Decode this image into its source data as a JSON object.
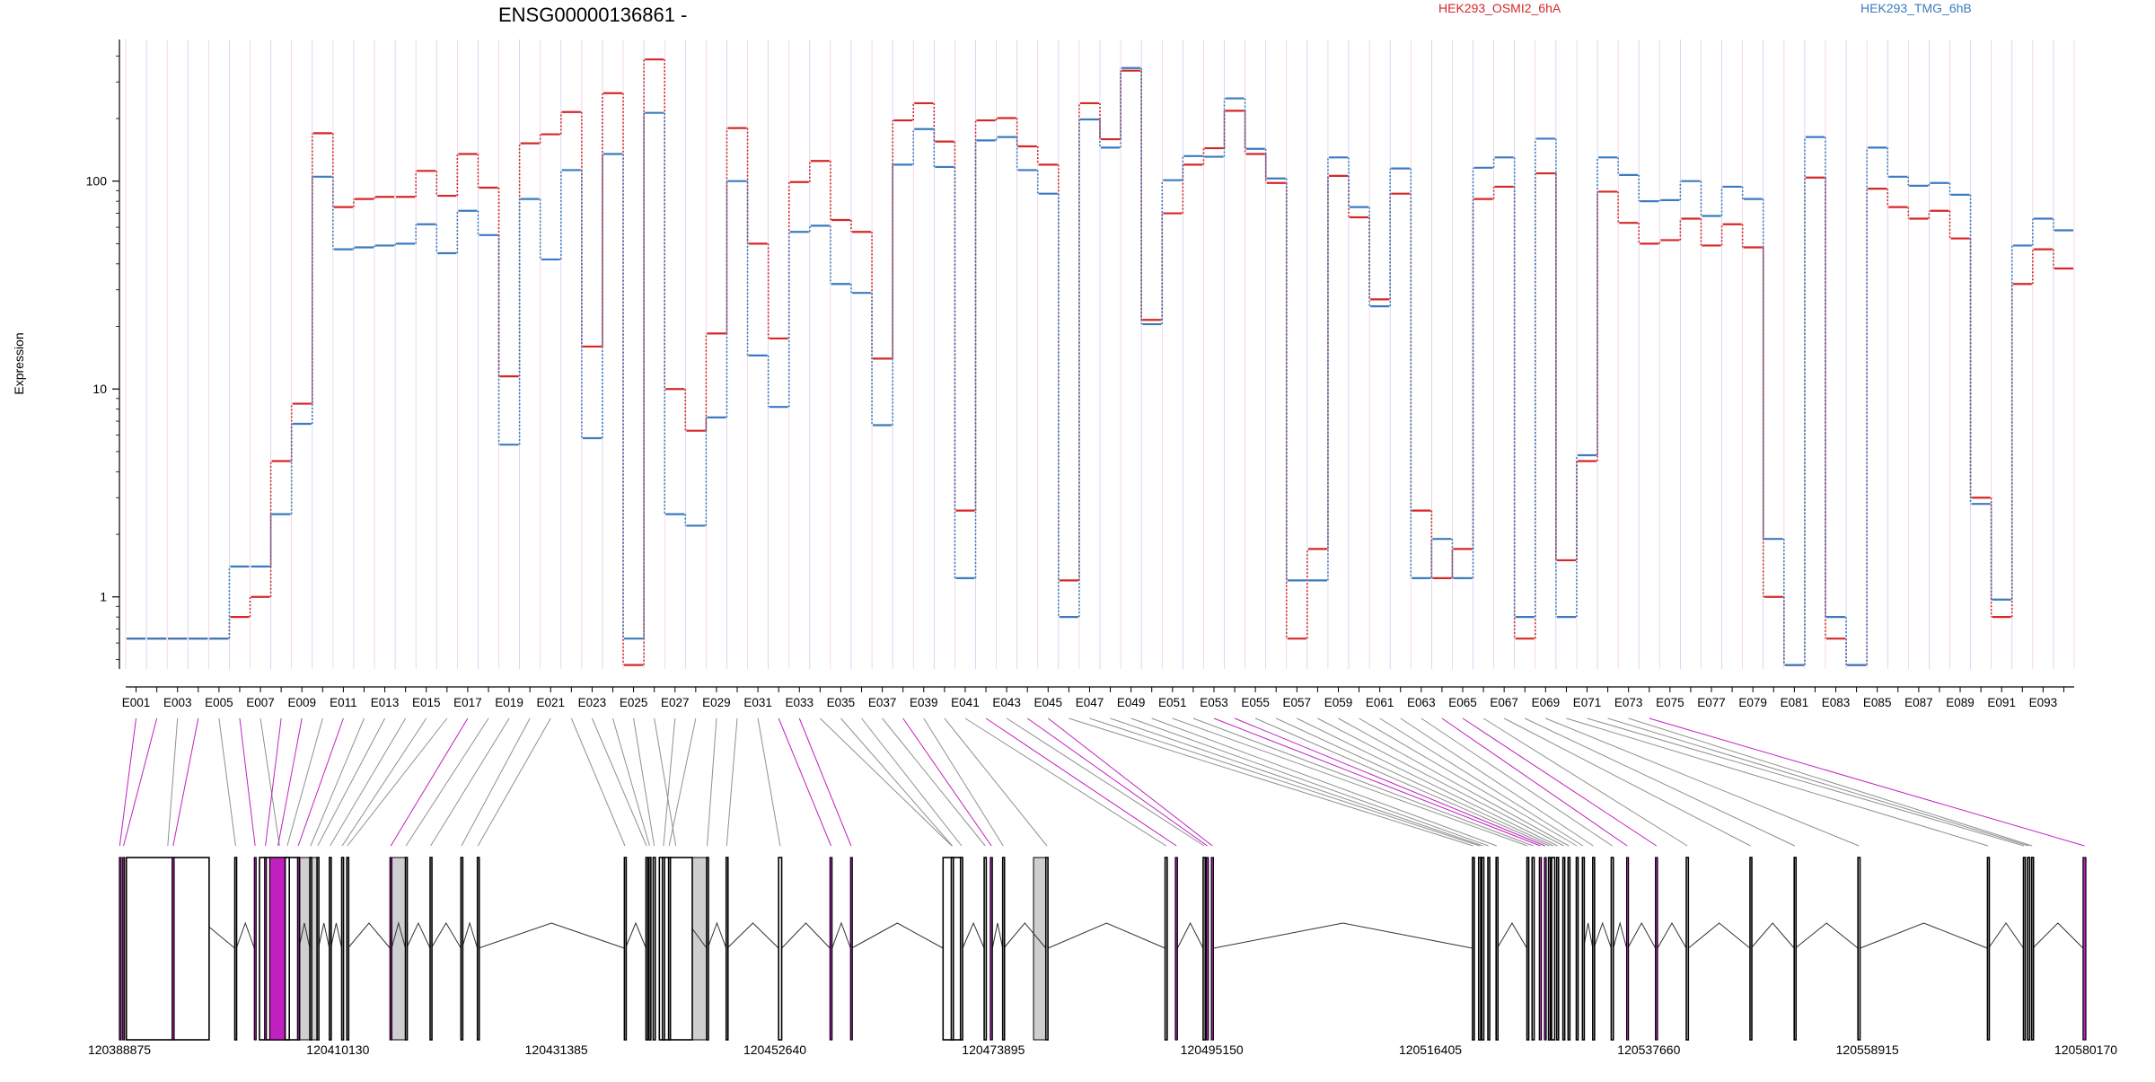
{
  "chart_data": {
    "type": "line",
    "title": "ENSG00000136861 -",
    "ylabel": "Expression",
    "xlabel": "",
    "y_scale": "log",
    "ylim": [
      0.45,
      480
    ],
    "y_ticks": [
      {
        "value": 1,
        "label": "1"
      },
      {
        "value": 10,
        "label": "10"
      },
      {
        "value": 100,
        "label": "100"
      }
    ],
    "grid": "vertical",
    "legend_position": "top-right",
    "categories": [
      "E001",
      "E002",
      "E003",
      "E004",
      "E005",
      "E006",
      "E007",
      "E008",
      "E009",
      "E010",
      "E011",
      "E012",
      "E013",
      "E014",
      "E015",
      "E016",
      "E017",
      "E018",
      "E019",
      "E020",
      "E021",
      "E022",
      "E023",
      "E024",
      "E025",
      "E026",
      "E027",
      "E028",
      "E029",
      "E030",
      "E031",
      "E032",
      "E033",
      "E034",
      "E035",
      "E036",
      "E037",
      "E038",
      "E039",
      "E040",
      "E041",
      "E042",
      "E043",
      "E044",
      "E045",
      "E046",
      "E047",
      "E048",
      "E049",
      "E050",
      "E051",
      "E052",
      "E053",
      "E054",
      "E055",
      "E056",
      "E057",
      "E058",
      "E059",
      "E060",
      "E061",
      "E062",
      "E063",
      "E064",
      "E065",
      "E066",
      "E067",
      "E068",
      "E069",
      "E070",
      "E071",
      "E072",
      "E073",
      "E074",
      "E075",
      "E076",
      "E077",
      "E078",
      "E079",
      "E080",
      "E081",
      "E082",
      "E083",
      "E084",
      "E085",
      "E086",
      "E087",
      "E088",
      "E089",
      "E090",
      "E091",
      "E092",
      "E093",
      "E094"
    ],
    "category_labels_shown": [
      "E001",
      "E003",
      "E005",
      "E007",
      "E009",
      "E011",
      "E013",
      "E015",
      "E017",
      "E019",
      "E021",
      "E023",
      "E025",
      "E027",
      "E029",
      "E031",
      "E033",
      "E035",
      "E037",
      "E039",
      "E041",
      "E043",
      "E045",
      "E047",
      "E049",
      "E051",
      "E053",
      "E055",
      "E057",
      "E059",
      "E061",
      "E063",
      "E065",
      "E067",
      "E069",
      "E071",
      "E073",
      "E075",
      "E077",
      "E079",
      "E081",
      "E083",
      "E085",
      "E087",
      "E089",
      "E091",
      "E093"
    ],
    "series": [
      {
        "name": "HEK293_OSMI2_6hA",
        "color": "#d62728",
        "values": [
          0.63,
          0.63,
          0.63,
          0.63,
          0.63,
          0.8,
          1.0,
          4.5,
          8.5,
          170,
          75,
          82,
          84,
          84,
          112,
          85,
          135,
          93,
          11.5,
          152,
          168,
          215,
          16,
          265,
          0.47,
          385,
          10,
          6.3,
          18.5,
          180,
          50,
          17.5,
          99,
          125,
          65,
          57,
          14,
          196,
          237,
          155,
          2.6,
          196,
          201,
          147,
          120,
          1.2,
          237,
          159,
          340,
          21.5,
          70,
          120,
          144,
          218,
          135,
          98,
          0.63,
          1.7,
          106,
          67,
          27,
          87,
          2.6,
          1.23,
          1.7,
          82,
          94,
          0.63,
          109,
          1.5,
          4.5,
          89,
          63,
          50,
          52,
          66,
          49,
          62,
          48,
          1.0,
          0.47,
          104,
          0.63,
          0.47,
          92,
          75,
          66,
          72,
          53,
          3.0,
          0.8,
          32,
          47,
          38
        ]
      },
      {
        "name": "HEK293_TMG_6hB",
        "color": "#3a7bbf",
        "values": [
          0.63,
          0.63,
          0.63,
          0.63,
          0.63,
          1.4,
          1.4,
          2.5,
          6.8,
          105,
          47,
          48,
          49,
          50,
          62,
          45,
          72,
          55,
          5.4,
          82,
          42,
          113,
          5.8,
          135,
          0.63,
          213,
          2.5,
          2.2,
          7.3,
          100,
          14.5,
          8.2,
          57,
          61,
          32,
          29,
          6.7,
          120,
          178,
          117,
          1.23,
          157,
          163,
          113,
          87,
          0.8,
          198,
          145,
          350,
          20.5,
          101,
          132,
          131,
          250,
          143,
          103,
          1.2,
          1.2,
          130,
          75,
          25,
          115,
          1.23,
          1.9,
          1.23,
          116,
          130,
          0.8,
          160,
          0.8,
          4.8,
          130,
          107,
          80,
          81,
          100,
          68,
          94,
          82,
          1.9,
          0.47,
          163,
          0.8,
          0.47,
          145,
          105,
          95,
          98,
          86,
          2.8,
          0.97,
          49,
          66,
          58
        ]
      }
    ],
    "exon_panel": {
      "coordinate_labels": [
        "120388875",
        "120410130",
        "120431385",
        "120452640",
        "120473895",
        "120495150",
        "120516405",
        "120537660",
        "120558915",
        "120580170"
      ],
      "gene_start": 120388875,
      "gene_end": 120580170,
      "exon_starts": [
        120388875,
        120389200,
        120389550,
        120394000,
        120400100,
        120402000,
        120402500,
        120403000,
        120403500,
        120405000,
        120406200,
        120407400,
        120408100,
        120409300,
        120410500,
        120411000,
        120415200,
        120416700,
        120419100,
        120422100,
        120423700,
        120438000,
        120440100,
        120440400,
        120440800,
        120441400,
        120441700,
        120442300,
        120446000,
        120447900,
        120453000,
        120458000,
        120460000,
        120469000,
        120469800,
        120470700,
        120473000,
        120473600,
        120474800,
        120479000,
        120490600,
        120491600,
        120494300,
        120494600,
        120495100,
        120520500,
        120521100,
        120521400,
        120522000,
        120522800,
        120525800,
        120526300,
        120527000,
        120527500,
        120527900,
        120528200,
        120528700,
        120529300,
        120529800,
        120530600,
        120531200,
        120532200,
        120534000,
        120535500,
        120538300,
        120541300,
        120547500,
        120551800,
        120558000,
        120570600,
        120574100,
        120574500,
        120574900,
        120579900
      ],
      "exon_ends": [
        120388930,
        120389350,
        120397600,
        120394200,
        120400250,
        120402150,
        120406400,
        120403150,
        120405100,
        120405400,
        120406330,
        120407550,
        120408230,
        120409430,
        120410600,
        120411100,
        120415350,
        120416800,
        120419200,
        120422200,
        120423800,
        120438100,
        120440200,
        120440500,
        120441000,
        120444600,
        120441900,
        120442400,
        120446100,
        120448000,
        120453300,
        120458200,
        120460100,
        120470700,
        120470000,
        120470900,
        120473200,
        120473800,
        120474900,
        120479200,
        120490800,
        120491800,
        120494500,
        120494800,
        120495300,
        120520600,
        120521300,
        120521600,
        120522100,
        120522900,
        120525900,
        120526500,
        120527200,
        120527600,
        120528050,
        120528500,
        120528850,
        120529450,
        120529950,
        120530700,
        120531300,
        120532300,
        120534200,
        120535600,
        120538500,
        120541500,
        120547600,
        120551900,
        120558200,
        120570700,
        120574200,
        120574700,
        120575000,
        120580170
      ],
      "exon_highlight": [
        1,
        1,
        0,
        1,
        0,
        1,
        0,
        1,
        1,
        0,
        1,
        0,
        0,
        0,
        0,
        0,
        1,
        0,
        0,
        0,
        0,
        0,
        0,
        0,
        0,
        0,
        0,
        0,
        0,
        0,
        0,
        1,
        1,
        0,
        0,
        0,
        0,
        1,
        0,
        0,
        0,
        1,
        0,
        1,
        1,
        0,
        0,
        0,
        0,
        0,
        0,
        0,
        1,
        1,
        0,
        0,
        0,
        0,
        0,
        0,
        0,
        0,
        0,
        1,
        1,
        0,
        0,
        0,
        0,
        0,
        0,
        0,
        0,
        1
      ],
      "shaded_regions": [
        [
          120390200,
          120397600
        ],
        [
          120403500,
          120408100
        ],
        [
          120415200,
          120416700
        ],
        [
          120442300,
          120446000
        ],
        [
          120477800,
          120479200
        ]
      ],
      "highlight_color": "#c020c0",
      "connector_color": "#909090"
    }
  }
}
